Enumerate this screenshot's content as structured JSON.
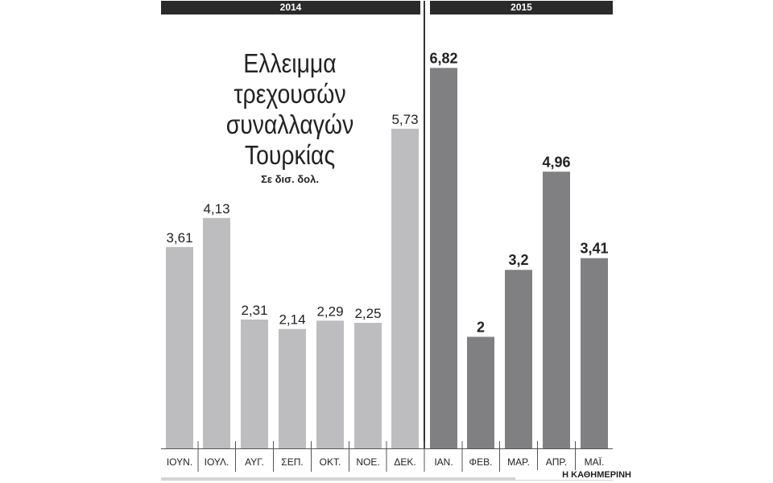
{
  "years": {
    "first": "2014",
    "second": "2015"
  },
  "title_lines": [
    "Ελλειμμα",
    "τρεχουσών",
    "συναλλαγών",
    "Τουρκίας"
  ],
  "unit": "Σε δισ. δολ.",
  "brand": "Η ΚΑΘΗΜΕΡΙΝΗ",
  "colors": {
    "bar_2014": "#bdbdbf",
    "bar_2015": "#808082",
    "text": "#222222",
    "year_band": "#2a2a2a"
  },
  "chart_data": {
    "type": "bar",
    "categories": [
      "ΙΟΥΝ.",
      "ΙΟΥΛ.",
      "ΑΥΓ.",
      "ΣΕΠ.",
      "ΟΚΤ.",
      "ΝΟΕ.",
      "ΔΕΚ.",
      "ΙΑΝ.",
      "ΦΕΒ.",
      "ΜΑΡ.",
      "ΑΠΡ.",
      "ΜΑΪ."
    ],
    "values": [
      3.61,
      4.13,
      2.31,
      2.14,
      2.29,
      2.25,
      5.73,
      6.82,
      2,
      3.2,
      4.96,
      3.41
    ],
    "value_labels": [
      "3,61",
      "4,13",
      "2,31",
      "2,14",
      "2,29",
      "2,25",
      "5,73",
      "6,82",
      "2",
      "3,2",
      "4,96",
      "3,41"
    ],
    "year_groups": [
      "2014",
      "2014",
      "2014",
      "2014",
      "2014",
      "2014",
      "2014",
      "2015",
      "2015",
      "2015",
      "2015",
      "2015"
    ],
    "title": "Ελλειμμα τρεχουσών συναλλαγών Τουρκίας",
    "ylabel": "Σε δισ. δολ.",
    "ylim": [
      0,
      7
    ],
    "grid": false,
    "legend": "none"
  }
}
